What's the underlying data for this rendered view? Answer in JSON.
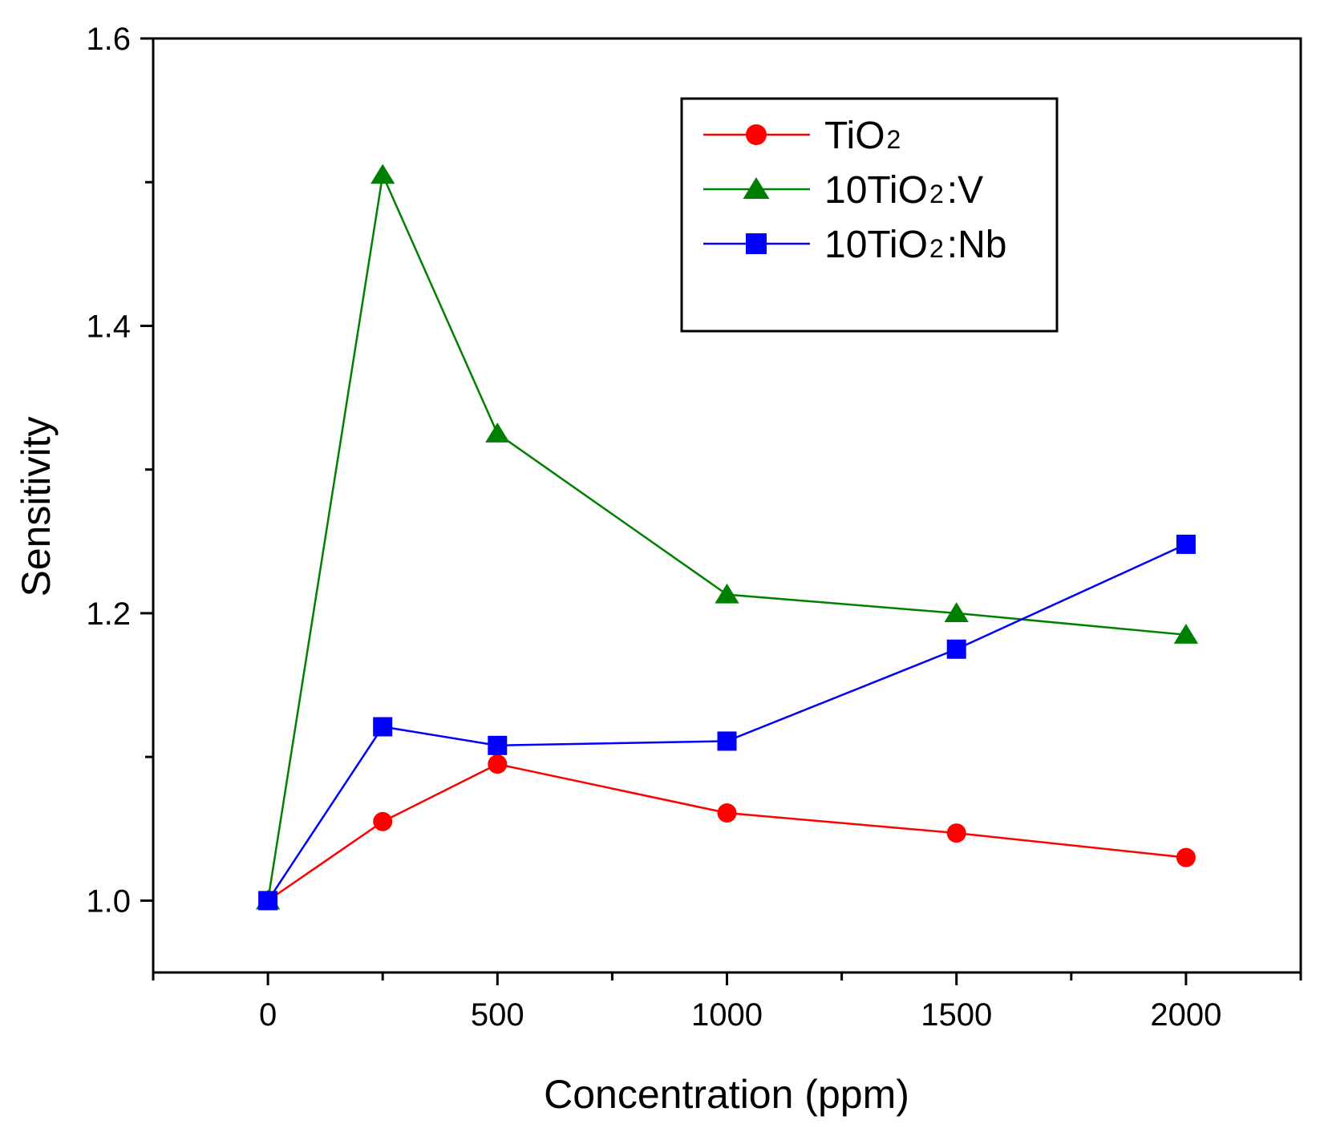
{
  "chart_data": {
    "type": "line",
    "title": "",
    "xlabel": "Concentration (ppm)",
    "ylabel": "Sensitivity",
    "xlim": [
      -250,
      2250
    ],
    "ylim": [
      0.95,
      1.6
    ],
    "xticks": [
      0,
      500,
      1000,
      1500,
      2000
    ],
    "xtick_labels": [
      "0",
      "500",
      "1000",
      "1500",
      "2000"
    ],
    "yticks": [
      1.0,
      1.2,
      1.4,
      1.6
    ],
    "ytick_labels": [
      "1.0",
      "1.2",
      "1.4",
      "1.6"
    ],
    "grid": false,
    "legend_position": "top-right",
    "x": [
      0,
      250,
      500,
      1000,
      1500,
      2000
    ],
    "series": [
      {
        "name": "TiO₂",
        "label_main": "TiO",
        "label_sub": "2",
        "label_suffix": "",
        "marker": "circle",
        "color": "#ff0000",
        "values": [
          1.0,
          1.055,
          1.095,
          1.061,
          1.047,
          1.03
        ]
      },
      {
        "name": "10TiO₂:V",
        "label_main": "10TiO",
        "label_sub": "2",
        "label_suffix": ":V",
        "marker": "triangle",
        "color": "#008000",
        "values": [
          1.0,
          1.505,
          1.325,
          1.213,
          1.2,
          1.185
        ]
      },
      {
        "name": "10TiO₂:Nb",
        "label_main": "10TiO",
        "label_sub": "2",
        "label_suffix": ":Nb",
        "marker": "square",
        "color": "#0000ff",
        "values": [
          1.0,
          1.121,
          1.108,
          1.111,
          1.175,
          1.248
        ]
      }
    ]
  }
}
